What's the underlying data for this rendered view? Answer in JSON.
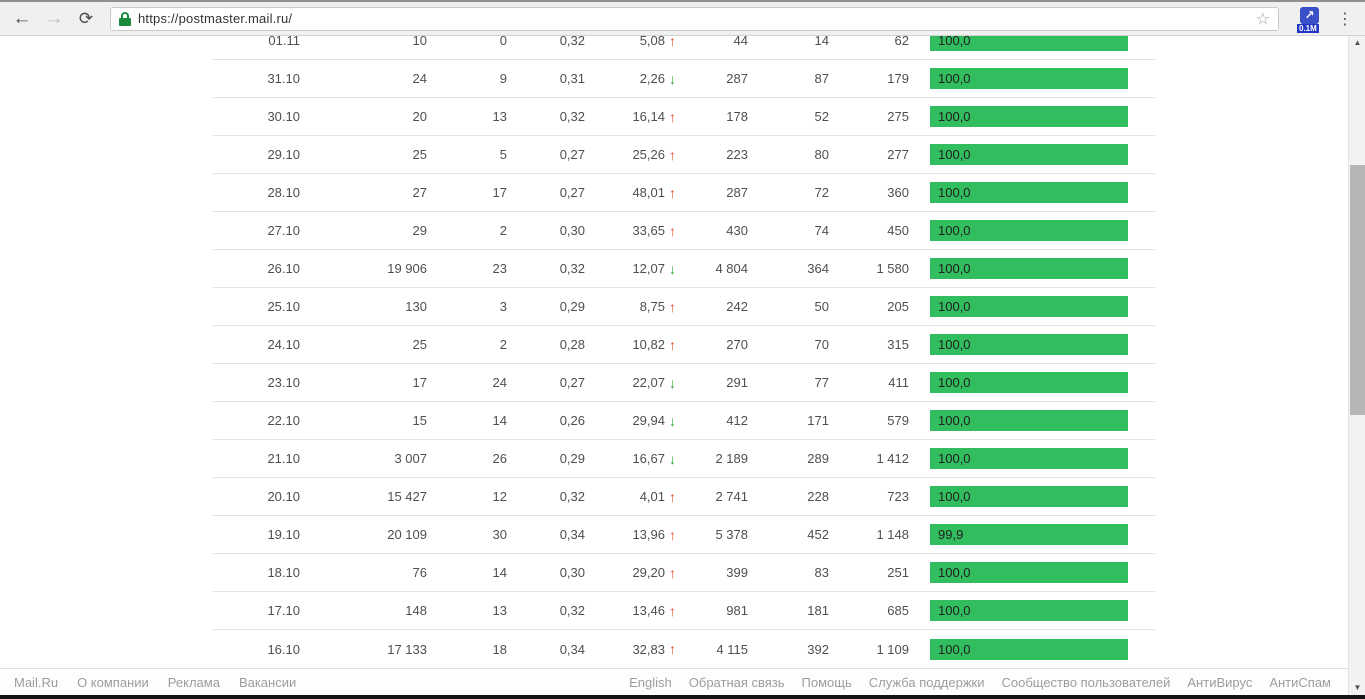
{
  "browser": {
    "url": "https://postmaster.mail.ru/",
    "extension_badge": "0.1M",
    "extension_glyph": "↗",
    "back_glyph": "←",
    "forward_glyph": "→",
    "reload_glyph": "⟳",
    "star_glyph": "☆",
    "menu_glyph": "⋮"
  },
  "colors": {
    "bar_green": "#32be5f",
    "trend_up_red": "#e0512d",
    "trend_down_green": "#2da42d",
    "lock_green": "#1a8a3c"
  },
  "table": {
    "rows": [
      {
        "date": "01.11",
        "v1": "10",
        "v2": "0",
        "v3": "0,32",
        "pct": "5,08",
        "trend": "up",
        "v4": "44",
        "v5": "14",
        "v6": "62",
        "bar": "100,0",
        "bar_value": 100.0
      },
      {
        "date": "31.10",
        "v1": "24",
        "v2": "9",
        "v3": "0,31",
        "pct": "2,26",
        "trend": "down",
        "v4": "287",
        "v5": "87",
        "v6": "179",
        "bar": "100,0",
        "bar_value": 100.0
      },
      {
        "date": "30.10",
        "v1": "20",
        "v2": "13",
        "v3": "0,32",
        "pct": "16,14",
        "trend": "up",
        "v4": "178",
        "v5": "52",
        "v6": "275",
        "bar": "100,0",
        "bar_value": 100.0
      },
      {
        "date": "29.10",
        "v1": "25",
        "v2": "5",
        "v3": "0,27",
        "pct": "25,26",
        "trend": "up",
        "v4": "223",
        "v5": "80",
        "v6": "277",
        "bar": "100,0",
        "bar_value": 100.0
      },
      {
        "date": "28.10",
        "v1": "27",
        "v2": "17",
        "v3": "0,27",
        "pct": "48,01",
        "trend": "up",
        "v4": "287",
        "v5": "72",
        "v6": "360",
        "bar": "100,0",
        "bar_value": 100.0
      },
      {
        "date": "27.10",
        "v1": "29",
        "v2": "2",
        "v3": "0,30",
        "pct": "33,65",
        "trend": "up",
        "v4": "430",
        "v5": "74",
        "v6": "450",
        "bar": "100,0",
        "bar_value": 100.0
      },
      {
        "date": "26.10",
        "v1": "19 906",
        "v2": "23",
        "v3": "0,32",
        "pct": "12,07",
        "trend": "down",
        "v4": "4 804",
        "v5": "364",
        "v6": "1 580",
        "bar": "100,0",
        "bar_value": 100.0
      },
      {
        "date": "25.10",
        "v1": "130",
        "v2": "3",
        "v3": "0,29",
        "pct": "8,75",
        "trend": "up",
        "v4": "242",
        "v5": "50",
        "v6": "205",
        "bar": "100,0",
        "bar_value": 100.0
      },
      {
        "date": "24.10",
        "v1": "25",
        "v2": "2",
        "v3": "0,28",
        "pct": "10,82",
        "trend": "up",
        "v4": "270",
        "v5": "70",
        "v6": "315",
        "bar": "100,0",
        "bar_value": 100.0
      },
      {
        "date": "23.10",
        "v1": "17",
        "v2": "24",
        "v3": "0,27",
        "pct": "22,07",
        "trend": "down",
        "v4": "291",
        "v5": "77",
        "v6": "411",
        "bar": "100,0",
        "bar_value": 100.0
      },
      {
        "date": "22.10",
        "v1": "15",
        "v2": "14",
        "v3": "0,26",
        "pct": "29,94",
        "trend": "down",
        "v4": "412",
        "v5": "171",
        "v6": "579",
        "bar": "100,0",
        "bar_value": 100.0
      },
      {
        "date": "21.10",
        "v1": "3 007",
        "v2": "26",
        "v3": "0,29",
        "pct": "16,67",
        "trend": "down",
        "v4": "2 189",
        "v5": "289",
        "v6": "1 412",
        "bar": "100,0",
        "bar_value": 100.0
      },
      {
        "date": "20.10",
        "v1": "15 427",
        "v2": "12",
        "v3": "0,32",
        "pct": "4,01",
        "trend": "up",
        "v4": "2 741",
        "v5": "228",
        "v6": "723",
        "bar": "100,0",
        "bar_value": 100.0
      },
      {
        "date": "19.10",
        "v1": "20 109",
        "v2": "30",
        "v3": "0,34",
        "pct": "13,96",
        "trend": "up",
        "v4": "5 378",
        "v5": "452",
        "v6": "1 148",
        "bar": "99,9",
        "bar_value": 99.9
      },
      {
        "date": "18.10",
        "v1": "76",
        "v2": "14",
        "v3": "0,30",
        "pct": "29,20",
        "trend": "up",
        "v4": "399",
        "v5": "83",
        "v6": "251",
        "bar": "100,0",
        "bar_value": 100.0
      },
      {
        "date": "17.10",
        "v1": "148",
        "v2": "13",
        "v3": "0,32",
        "pct": "13,46",
        "trend": "up",
        "v4": "981",
        "v5": "181",
        "v6": "685",
        "bar": "100,0",
        "bar_value": 100.0
      },
      {
        "date": "16.10",
        "v1": "17 133",
        "v2": "18",
        "v3": "0,34",
        "pct": "32,83",
        "trend": "up",
        "v4": "4 115",
        "v5": "392",
        "v6": "1 109",
        "bar": "100,0",
        "bar_value": 100.0
      }
    ]
  },
  "footer": {
    "left": [
      "Mail.Ru",
      "О компании",
      "Реклама",
      "Вакансии"
    ],
    "right": [
      "English",
      "Обратная связь",
      "Помощь",
      "Служба поддержки",
      "Сообщество пользователей",
      "АнтиВирус",
      "АнтиСпам"
    ]
  }
}
